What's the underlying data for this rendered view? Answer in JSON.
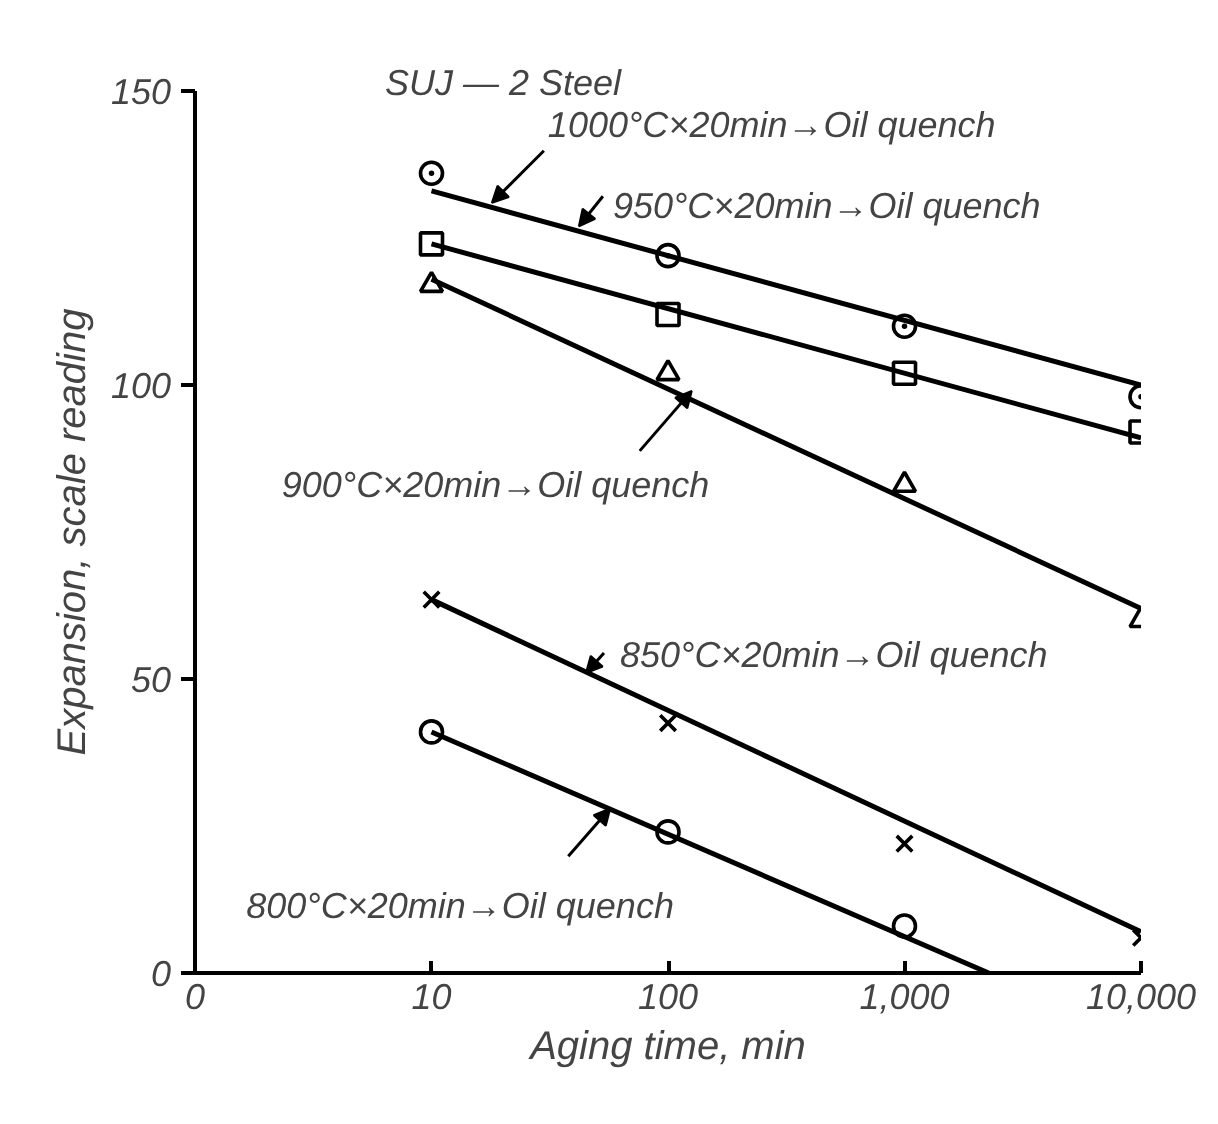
{
  "chart_data": {
    "type": "line",
    "title": "SUJ — 2 Steel",
    "xlabel": "Aging time, min",
    "ylabel": "Expansion, scale reading",
    "log": "x",
    "grid": false,
    "xlim": [
      0,
      10000
    ],
    "xticks": [
      0,
      10,
      100,
      {
        "value": 1000,
        "label": "1,000"
      },
      {
        "value": 10000,
        "label": "10,000"
      }
    ],
    "ylim": [
      0,
      150
    ],
    "yticks": [
      0,
      50,
      100,
      150
    ],
    "x": [
      10,
      100,
      1000,
      10000
    ],
    "series": [
      {
        "type": "scatter",
        "marker": "circle_dot",
        "color": "#000000",
        "values": [
          136,
          122,
          110,
          98
        ]
      },
      {
        "marker": "none",
        "color": "#000000",
        "x": [
          10,
          10000
        ],
        "values": [
          133,
          100
        ]
      },
      {
        "type": "scatter",
        "marker": "square",
        "color": "#000000",
        "values": [
          124,
          112,
          102,
          92
        ]
      },
      {
        "marker": "none",
        "color": "#000000",
        "x": [
          10,
          10000
        ],
        "values": [
          124,
          91
        ]
      },
      {
        "type": "scatter",
        "marker": "triangle",
        "color": "#000000",
        "values": [
          117,
          102,
          83,
          60
        ]
      },
      {
        "marker": "none",
        "color": "#000000",
        "x": [
          10,
          10000
        ],
        "values": [
          118,
          62
        ]
      },
      {
        "type": "scatter",
        "marker": "cross",
        "color": "#000000",
        "values": [
          63.5,
          42.5,
          22,
          6
        ]
      },
      {
        "marker": "none",
        "color": "#000000",
        "x": [
          10,
          10000
        ],
        "values": [
          63.5,
          7
        ]
      },
      {
        "type": "scatter",
        "marker": "circle",
        "color": "#000000",
        "values": [
          41,
          24,
          8,
          null
        ]
      },
      {
        "marker": "none",
        "color": "#000000",
        "x": [
          10,
          2270
        ],
        "values": [
          41,
          0
        ]
      }
    ],
    "annotations": [
      {
        "text": "1000°C×20min→Oil quench",
        "x": 18,
        "y": 131
      },
      {
        "text": "950°C×20min→Oil quench",
        "x": 42,
        "y": 127
      },
      {
        "text": "900°C×20min→Oil quench",
        "x": 126,
        "y": 99
      },
      {
        "text": "850°C×20min→Oil quench",
        "x": 45,
        "y": 51
      },
      {
        "text": "800°C×20min→Oil quench",
        "x": 57,
        "y": 28
      }
    ]
  }
}
